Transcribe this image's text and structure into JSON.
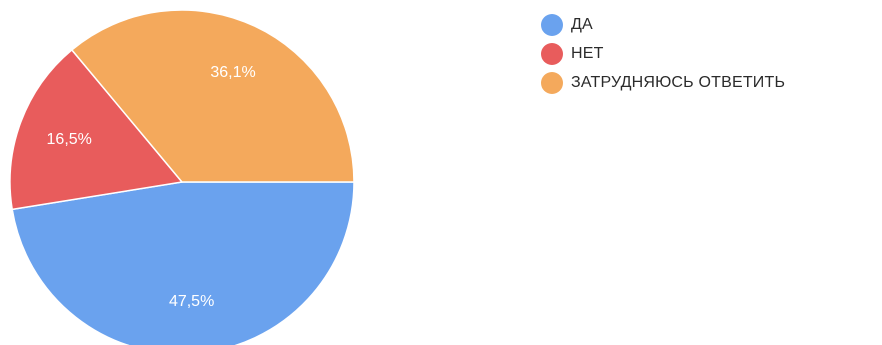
{
  "chart_data": {
    "type": "pie",
    "title": "",
    "categories": [
      "ДА",
      "НЕТ",
      "ЗАТРУДНЯЮСЬ ОТВЕТИТЬ"
    ],
    "values": [
      47.5,
      16.5,
      36.1
    ],
    "data_labels": [
      "47,5%",
      "16,5%",
      "36,1%"
    ],
    "colors": [
      "#6aa2ee",
      "#e85c5c",
      "#f4a95c"
    ],
    "legend_position": "right"
  }
}
